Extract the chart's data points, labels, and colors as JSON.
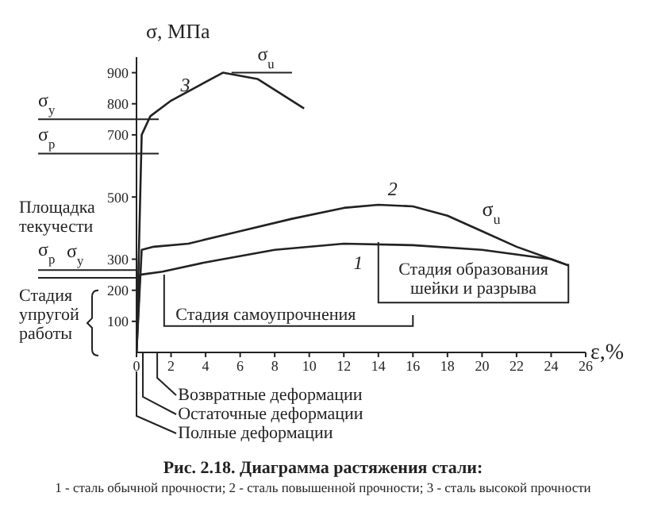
{
  "chart_data": {
    "type": "line",
    "title": "Рис. 2.18. Диаграмма растяжения стали:",
    "subtitle": "1 - сталь обычной прочности; 2 - сталь повышенной прочности; 3 - сталь высокой прочности",
    "xlabel": "ε,%",
    "ylabel": "σ, МПа",
    "xlim": [
      0,
      26
    ],
    "xticks": [
      0,
      2,
      4,
      6,
      8,
      10,
      12,
      14,
      16,
      18,
      20,
      22,
      24,
      26
    ],
    "ylim": [
      0,
      950
    ],
    "yticks": [
      100,
      200,
      300,
      500,
      700,
      800,
      900
    ],
    "grid": false,
    "legend": false,
    "marker": "none",
    "line_style": "solid",
    "series": [
      {
        "name": "1",
        "color": "#222222",
        "x": [
          0,
          0.2,
          1.5,
          4,
          8,
          12,
          16,
          20,
          24,
          25
        ],
        "values": [
          0,
          250,
          260,
          290,
          330,
          350,
          345,
          330,
          300,
          280
        ]
      },
      {
        "name": "2",
        "color": "#222222",
        "x": [
          0,
          0.3,
          1,
          3,
          6,
          9,
          12,
          14,
          16,
          18,
          20,
          22,
          24,
          25
        ],
        "values": [
          0,
          330,
          340,
          350,
          390,
          430,
          465,
          475,
          470,
          440,
          390,
          340,
          300,
          280
        ]
      },
      {
        "name": "3",
        "color": "#222222",
        "x": [
          0,
          0.3,
          0.8,
          2,
          5,
          7,
          9.7
        ],
        "values": [
          0,
          700,
          760,
          810,
          900,
          880,
          785
        ]
      }
    ],
    "ref_lines": [
      {
        "axis": "y",
        "value": 900,
        "label": "σ$_{u}$"
      },
      {
        "axis": "y",
        "value": 750,
        "label": "σ$_{y}$"
      },
      {
        "axis": "y",
        "value": 640,
        "label": "σ$_{p}$"
      },
      {
        "axis": "y",
        "value": 265,
        "label": "σ$_{y}$"
      },
      {
        "axis": "y",
        "value": 240,
        "label": "σ$_{p}$"
      }
    ],
    "annotations": [
      "Площадка текучести",
      "Стадия упругой работы",
      "Стадия самоупрочнения",
      "Стадия образования шейки и разрыва",
      "Возвратные деформации",
      "Остаточные деформации",
      "Полные деформации",
      {
        "text": "σ$_{u}$",
        "x": 20,
        "y": 420
      }
    ]
  }
}
